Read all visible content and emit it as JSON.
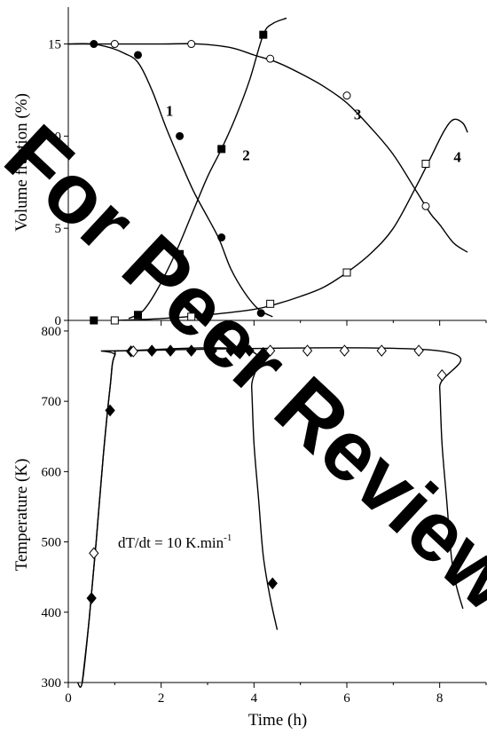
{
  "watermark": {
    "text": "For Peer Review",
    "color": "#00b4f0"
  },
  "chart_data": [
    {
      "type": "line",
      "ylabel": "Volume fraction (%)",
      "xlim": [
        0,
        9
      ],
      "ylim": [
        0,
        17
      ],
      "yticks": [
        0,
        5,
        10,
        15
      ],
      "series": [
        {
          "name": "1",
          "marker": "filled-circle",
          "curve": [
            [
              0,
              15
            ],
            [
              0.5,
              15
            ],
            [
              0.9,
              14.8
            ],
            [
              1.2,
              14.5
            ],
            [
              1.5,
              14
            ],
            [
              1.8,
              12.5
            ],
            [
              2.1,
              10.5
            ],
            [
              2.4,
              8.7
            ],
            [
              2.7,
              7
            ],
            [
              3.0,
              5.6
            ],
            [
              3.25,
              4.4
            ],
            [
              3.5,
              2.8
            ],
            [
              3.8,
              1.5
            ],
            [
              4.1,
              0.6
            ],
            [
              4.4,
              0.2
            ]
          ],
          "points": [
            [
              0.55,
              15
            ],
            [
              1.5,
              14.4
            ],
            [
              2.4,
              10
            ],
            [
              3.3,
              4.5
            ],
            [
              4.15,
              0.4
            ]
          ]
        },
        {
          "name": "2",
          "marker": "filled-square",
          "curve": [
            [
              1.3,
              0.1
            ],
            [
              1.6,
              0.5
            ],
            [
              1.9,
              1.6
            ],
            [
              2.3,
              3.6
            ],
            [
              2.7,
              6
            ],
            [
              3.0,
              7.8
            ],
            [
              3.3,
              9.3
            ],
            [
              3.6,
              11
            ],
            [
              3.9,
              13
            ],
            [
              4.2,
              15.5
            ],
            [
              4.4,
              16.1
            ],
            [
              4.7,
              16.4
            ]
          ],
          "points": [
            [
              0.55,
              0
            ],
            [
              1.5,
              0.3
            ],
            [
              2.4,
              3.6
            ],
            [
              3.3,
              9.3
            ],
            [
              4.2,
              15.5
            ]
          ]
        },
        {
          "name": "3",
          "marker": "open-circle",
          "curve": [
            [
              0,
              15
            ],
            [
              1,
              15
            ],
            [
              2,
              15
            ],
            [
              2.8,
              15
            ],
            [
              3.5,
              14.8
            ],
            [
              4.0,
              14.4
            ],
            [
              4.5,
              14
            ],
            [
              5,
              13.4
            ],
            [
              5.5,
              12.7
            ],
            [
              6,
              11.8
            ],
            [
              6.5,
              10.5
            ],
            [
              7,
              9
            ],
            [
              7.5,
              7
            ],
            [
              7.8,
              5.8
            ],
            [
              8,
              5.2
            ],
            [
              8.3,
              4.2
            ],
            [
              8.6,
              3.7
            ]
          ],
          "points": [
            [
              1,
              15
            ],
            [
              2.65,
              15
            ],
            [
              4.35,
              14.2
            ],
            [
              6,
              12.2
            ],
            [
              7.7,
              6.2
            ]
          ]
        },
        {
          "name": "4",
          "marker": "open-square",
          "curve": [
            [
              1.0,
              0
            ],
            [
              2,
              0.1
            ],
            [
              3,
              0.3
            ],
            [
              4,
              0.6
            ],
            [
              4.5,
              0.9
            ],
            [
              5,
              1.3
            ],
            [
              5.5,
              1.8
            ],
            [
              6,
              2.6
            ],
            [
              6.5,
              3.6
            ],
            [
              7,
              5
            ],
            [
              7.5,
              7.3
            ],
            [
              7.8,
              8.8
            ],
            [
              8.1,
              10.3
            ],
            [
              8.3,
              10.9
            ],
            [
              8.5,
              10.7
            ],
            [
              8.6,
              10.2
            ]
          ],
          "points": [
            [
              1,
              0
            ],
            [
              2.65,
              0.2
            ],
            [
              4.35,
              0.9
            ],
            [
              6,
              2.6
            ],
            [
              7.7,
              8.5
            ]
          ]
        }
      ]
    },
    {
      "type": "line",
      "xlabel": "Time (h)",
      "ylabel": "Temperature (K)",
      "xlim": [
        0,
        9
      ],
      "ylim": [
        300,
        810
      ],
      "xticks": [
        0,
        2,
        4,
        6,
        8
      ],
      "yticks": [
        300,
        400,
        500,
        600,
        700,
        800
      ],
      "annotation": {
        "text": "dT/dt = 10 K.min",
        "superscript": "-1"
      },
      "series": [
        {
          "name": "solid",
          "marker": "filled-diamond",
          "curve": [
            [
              0.2,
              300
            ],
            [
              0.3,
              300
            ],
            [
              0.45,
              390
            ],
            [
              0.6,
              500
            ],
            [
              0.75,
              620
            ],
            [
              0.9,
              720
            ],
            [
              1.0,
              765
            ],
            [
              1.3,
              772
            ],
            [
              3.9,
              772
            ],
            [
              3.95,
              720
            ],
            [
              4.0,
              640
            ],
            [
              4.1,
              560
            ],
            [
              4.2,
              480
            ],
            [
              4.35,
              420
            ],
            [
              4.5,
              375
            ]
          ],
          "points": [
            [
              0.5,
              420
            ],
            [
              0.9,
              687
            ],
            [
              1.35,
              771
            ],
            [
              1.8,
              772
            ],
            [
              2.2,
              772
            ],
            [
              2.65,
              772
            ],
            [
              3.1,
              772
            ],
            [
              3.5,
              772
            ],
            [
              3.9,
              772
            ],
            [
              4.4,
              441
            ]
          ]
        },
        {
          "name": "open",
          "marker": "open-diamond",
          "curve": [
            [
              0.3,
              300
            ],
            [
              0.45,
              390
            ],
            [
              0.6,
              500
            ],
            [
              0.75,
              620
            ],
            [
              0.9,
              720
            ],
            [
              1.0,
              765
            ],
            [
              1.3,
              772
            ],
            [
              7.95,
              772
            ],
            [
              8.0,
              720
            ],
            [
              8.05,
              640
            ],
            [
              8.15,
              560
            ],
            [
              8.25,
              480
            ],
            [
              8.35,
              440
            ],
            [
              8.5,
              405
            ]
          ],
          "points": [
            [
              0.55,
              484
            ],
            [
              1.4,
              771
            ],
            [
              4.35,
              772
            ],
            [
              5.15,
              772
            ],
            [
              5.95,
              772
            ],
            [
              6.75,
              772
            ],
            [
              7.55,
              772
            ],
            [
              8.05,
              737
            ]
          ]
        }
      ]
    }
  ]
}
